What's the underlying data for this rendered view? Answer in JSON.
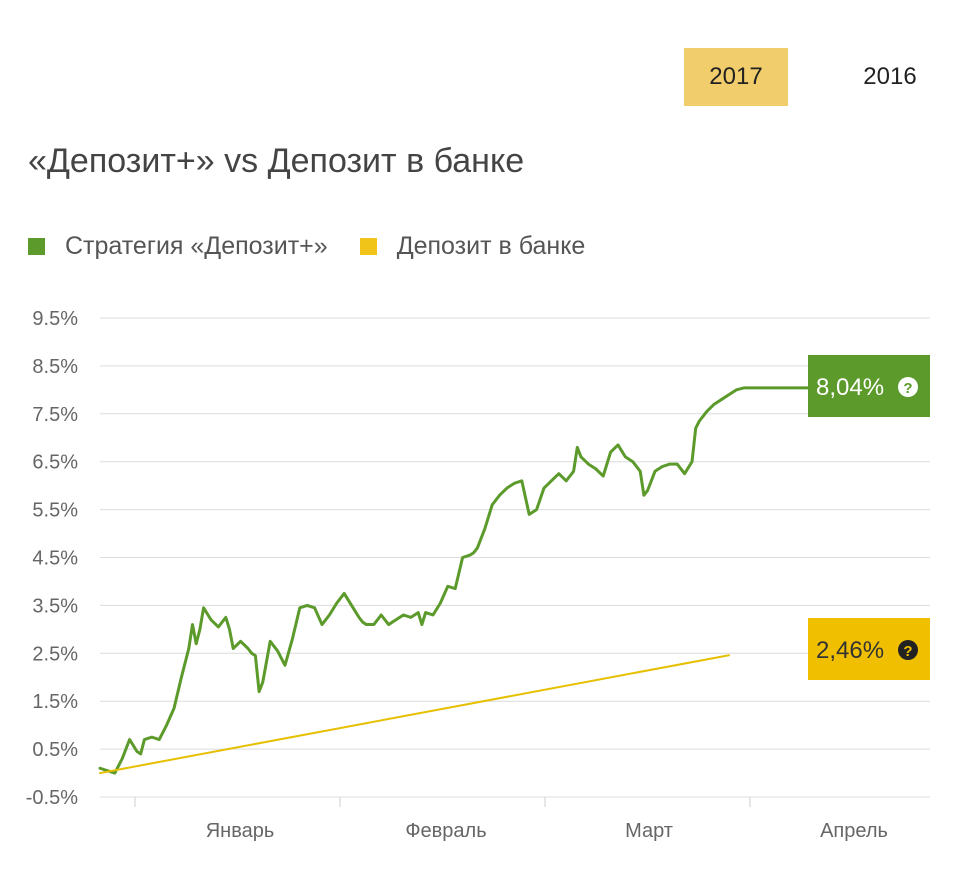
{
  "tabs": [
    {
      "label": "2017",
      "active": true
    },
    {
      "label": "2016",
      "active": false
    }
  ],
  "chart_data": {
    "type": "line",
    "title": "«Депозит+» vs Депозит в банке",
    "legend": [
      "Стратегия «Депозит+»",
      "Депозит в банке"
    ],
    "legend_position": "top-left",
    "y_ticks": [
      "9.5%",
      "8.5%",
      "7.5%",
      "6.5%",
      "5.5%",
      "4.5%",
      "3.5%",
      "2.5%",
      "1.5%",
      "0.5%",
      "-0.5%"
    ],
    "ylim": [
      -0.5,
      9.5
    ],
    "x_ticks": [
      "Январь",
      "Февраль",
      "Март",
      "Апрель"
    ],
    "grid": true,
    "series": [
      {
        "name": "Стратегия «Депозит+»",
        "color": "#5b9a2b",
        "x": [
          0,
          2,
          4,
          6,
          8,
          10,
          11,
          12,
          14,
          16,
          18,
          20,
          22,
          24,
          25,
          26,
          27,
          28,
          30,
          32,
          34,
          35,
          36,
          38,
          40,
          41,
          42,
          43,
          44,
          46,
          48,
          50,
          52,
          54,
          56,
          58,
          60,
          62,
          64,
          66,
          68,
          70,
          71,
          72,
          74,
          76,
          78,
          80,
          82,
          84,
          86,
          87,
          88,
          90,
          92,
          94,
          96,
          98,
          100,
          101,
          102,
          104,
          106,
          108,
          110,
          112,
          114,
          116,
          118,
          120,
          122,
          124,
          126,
          128,
          129,
          130,
          132,
          134,
          136,
          138,
          140,
          142,
          144,
          146,
          147,
          148,
          150,
          152,
          154,
          156,
          158,
          160,
          161,
          162,
          164,
          166,
          168,
          170,
          172,
          174,
          176,
          178,
          180,
          182,
          184,
          186,
          188,
          190,
          192,
          194,
          196,
          198,
          200
        ],
        "y": [
          0.1,
          0.05,
          0.0,
          0.3,
          0.7,
          0.45,
          0.4,
          0.7,
          0.75,
          0.7,
          1.0,
          1.35,
          2.0,
          2.6,
          3.1,
          2.7,
          3.0,
          3.45,
          3.2,
          3.05,
          3.25,
          3.0,
          2.6,
          2.75,
          2.6,
          2.5,
          2.45,
          1.7,
          1.9,
          2.75,
          2.55,
          2.25,
          2.8,
          3.45,
          3.5,
          3.45,
          3.1,
          3.3,
          3.55,
          3.75,
          3.5,
          3.25,
          3.15,
          3.1,
          3.1,
          3.3,
          3.1,
          3.2,
          3.3,
          3.25,
          3.35,
          3.1,
          3.35,
          3.3,
          3.55,
          3.9,
          3.85,
          4.5,
          4.55,
          4.6,
          4.7,
          5.1,
          5.6,
          5.8,
          5.95,
          6.05,
          6.1,
          5.4,
          5.5,
          5.95,
          6.1,
          6.25,
          6.1,
          6.3,
          6.8,
          6.6,
          6.45,
          6.35,
          6.2,
          6.7,
          6.85,
          6.6,
          6.5,
          6.3,
          5.8,
          5.9,
          6.3,
          6.4,
          6.45,
          6.45,
          6.25,
          6.5,
          7.2,
          7.35,
          7.55,
          7.7,
          7.8,
          7.9,
          8.0,
          8.04,
          8.04,
          8.04,
          8.04,
          8.04,
          8.04,
          8.04,
          8.04,
          8.04,
          8.04,
          8.04,
          8.04,
          8.04,
          8.04
        ],
        "end_label": "8,04%"
      },
      {
        "name": "Депозит в банке",
        "color": "#e6c000",
        "x": [
          0,
          170
        ],
        "y": [
          0.0,
          2.46
        ],
        "end_label": "2,46%"
      }
    ],
    "callout_icon": "question-circle-icon"
  }
}
